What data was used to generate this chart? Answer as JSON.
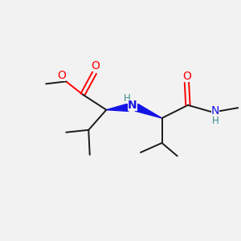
{
  "bg_color": "#f2f2f2",
  "bond_color": "#1a1a1a",
  "n_color": "#1414e6",
  "o_color": "#ff0000",
  "nh_color": "#3a8a8a",
  "wedge_color": "#1414e6",
  "fig_size": [
    3.0,
    3.0
  ],
  "dpi": 100,
  "xlim": [
    0,
    10
  ],
  "ylim": [
    0,
    10
  ]
}
